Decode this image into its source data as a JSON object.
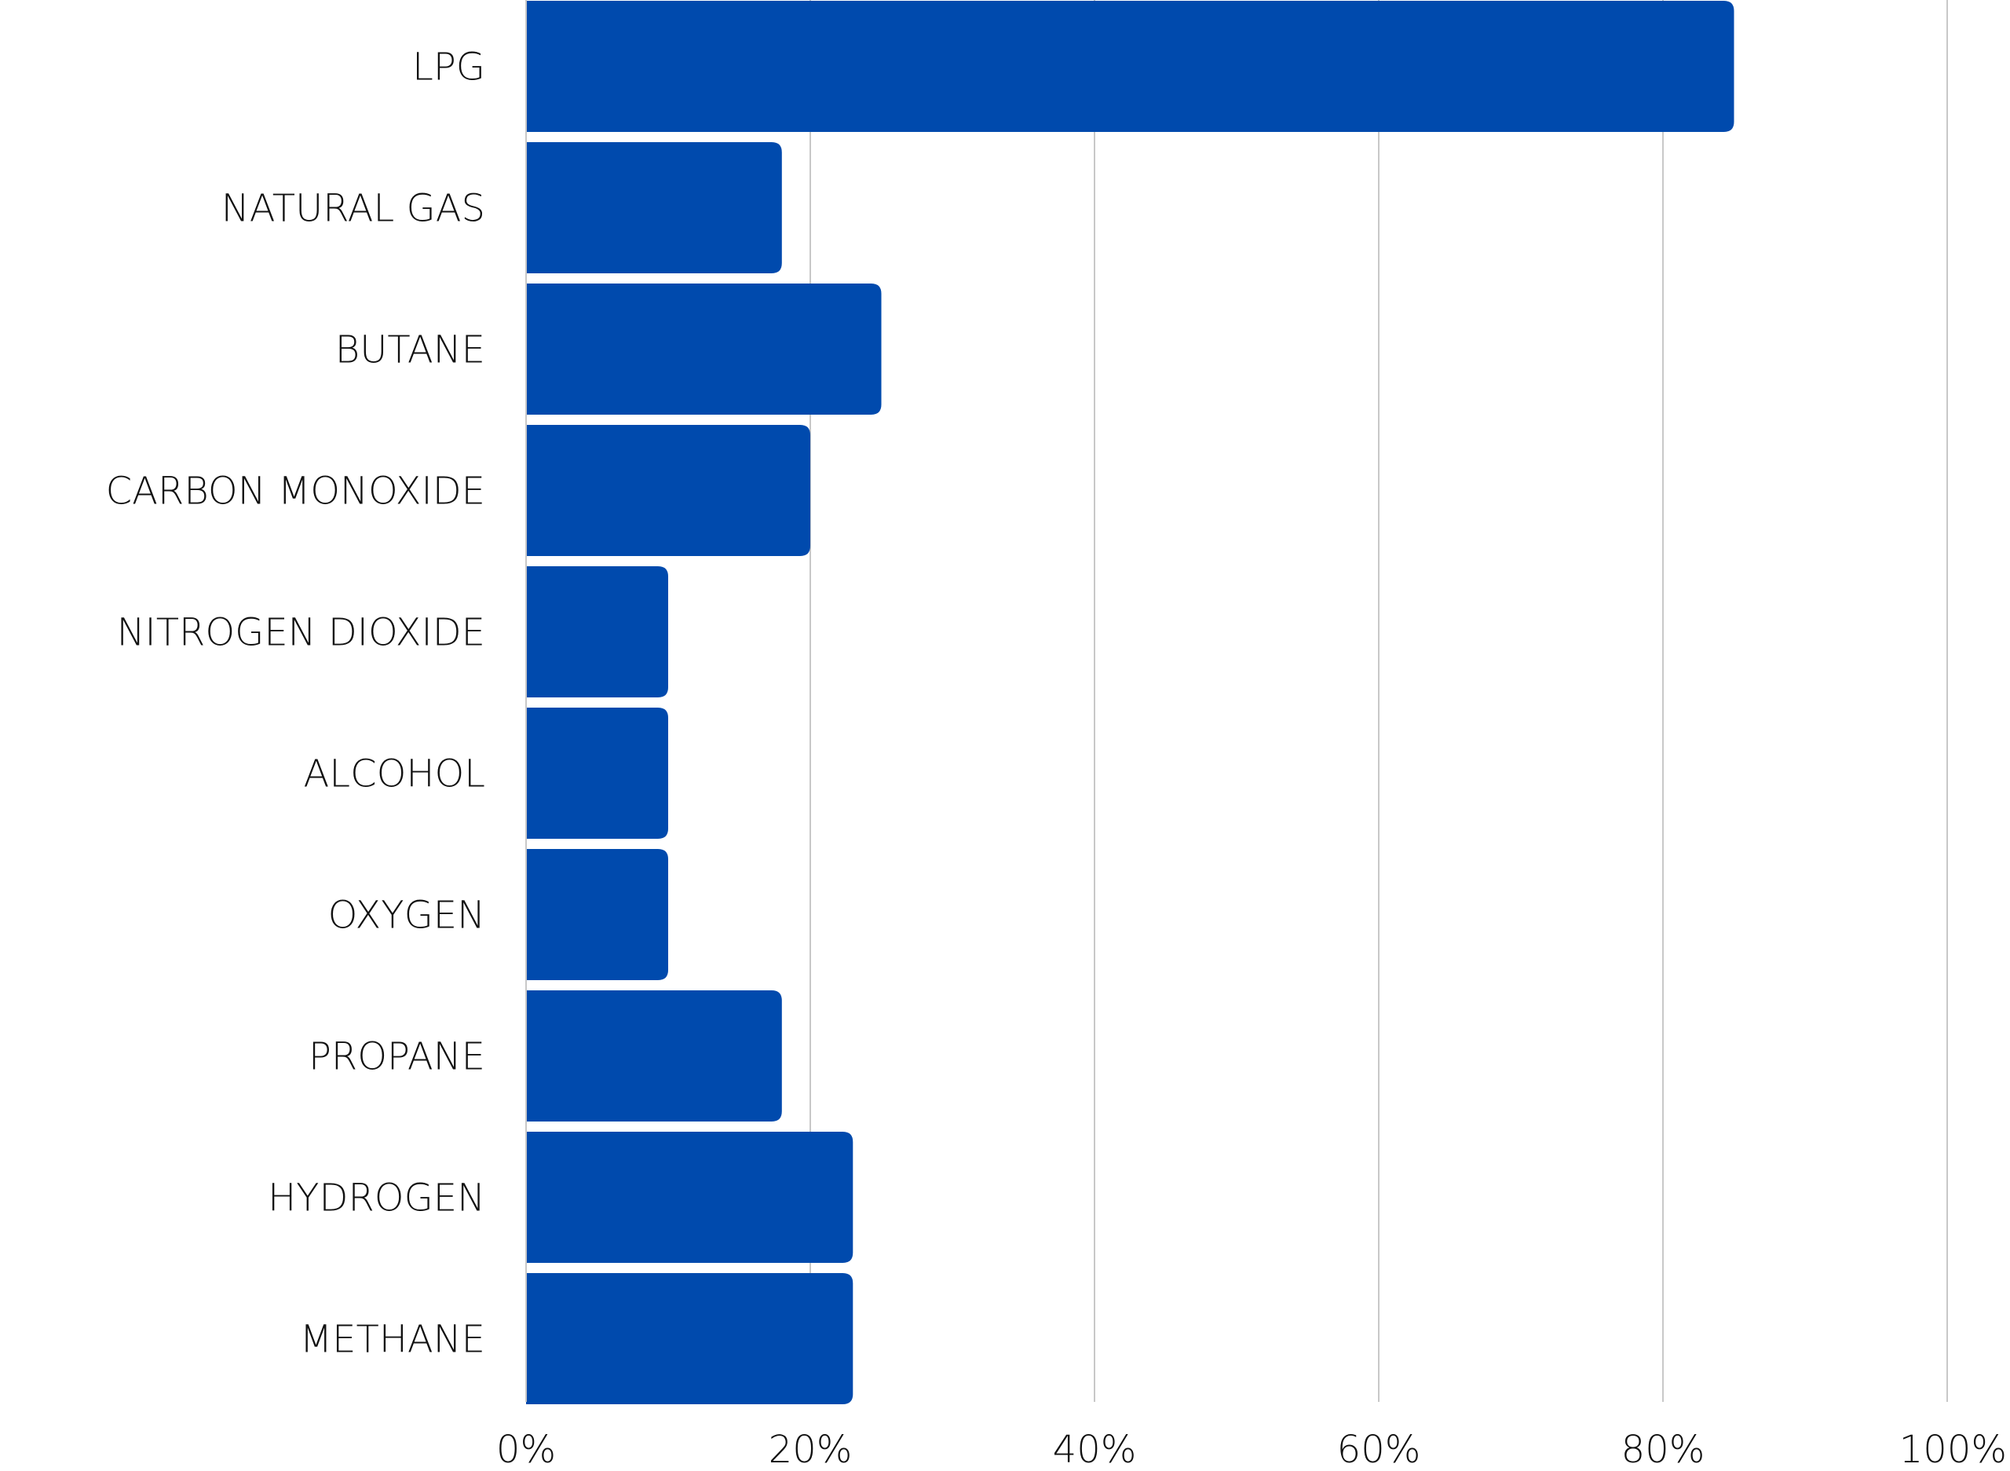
{
  "chart_data": {
    "type": "bar",
    "orientation": "horizontal",
    "title": "",
    "xlabel": "",
    "ylabel": "",
    "categories": [
      "LPG",
      "NATURAL GAS",
      "BUTANE",
      "CARBON MONOXIDE",
      "NITROGEN DIOXIDE",
      "ALCOHOL",
      "OXYGEN",
      "PROPANE",
      "HYDROGEN",
      "METHANE"
    ],
    "values": [
      85,
      18,
      25,
      20,
      10,
      10,
      10,
      18,
      23,
      23
    ],
    "value_unit": "%",
    "xlim": [
      0,
      100
    ],
    "xticks": [
      0,
      20,
      40,
      60,
      80,
      100
    ],
    "xtick_labels": [
      "0%",
      "20%",
      "40%",
      "60%",
      "80%",
      "100%"
    ],
    "grid": true,
    "legend": "none",
    "bar_color": "#004aad",
    "grid_color": "#c8c8c8"
  }
}
